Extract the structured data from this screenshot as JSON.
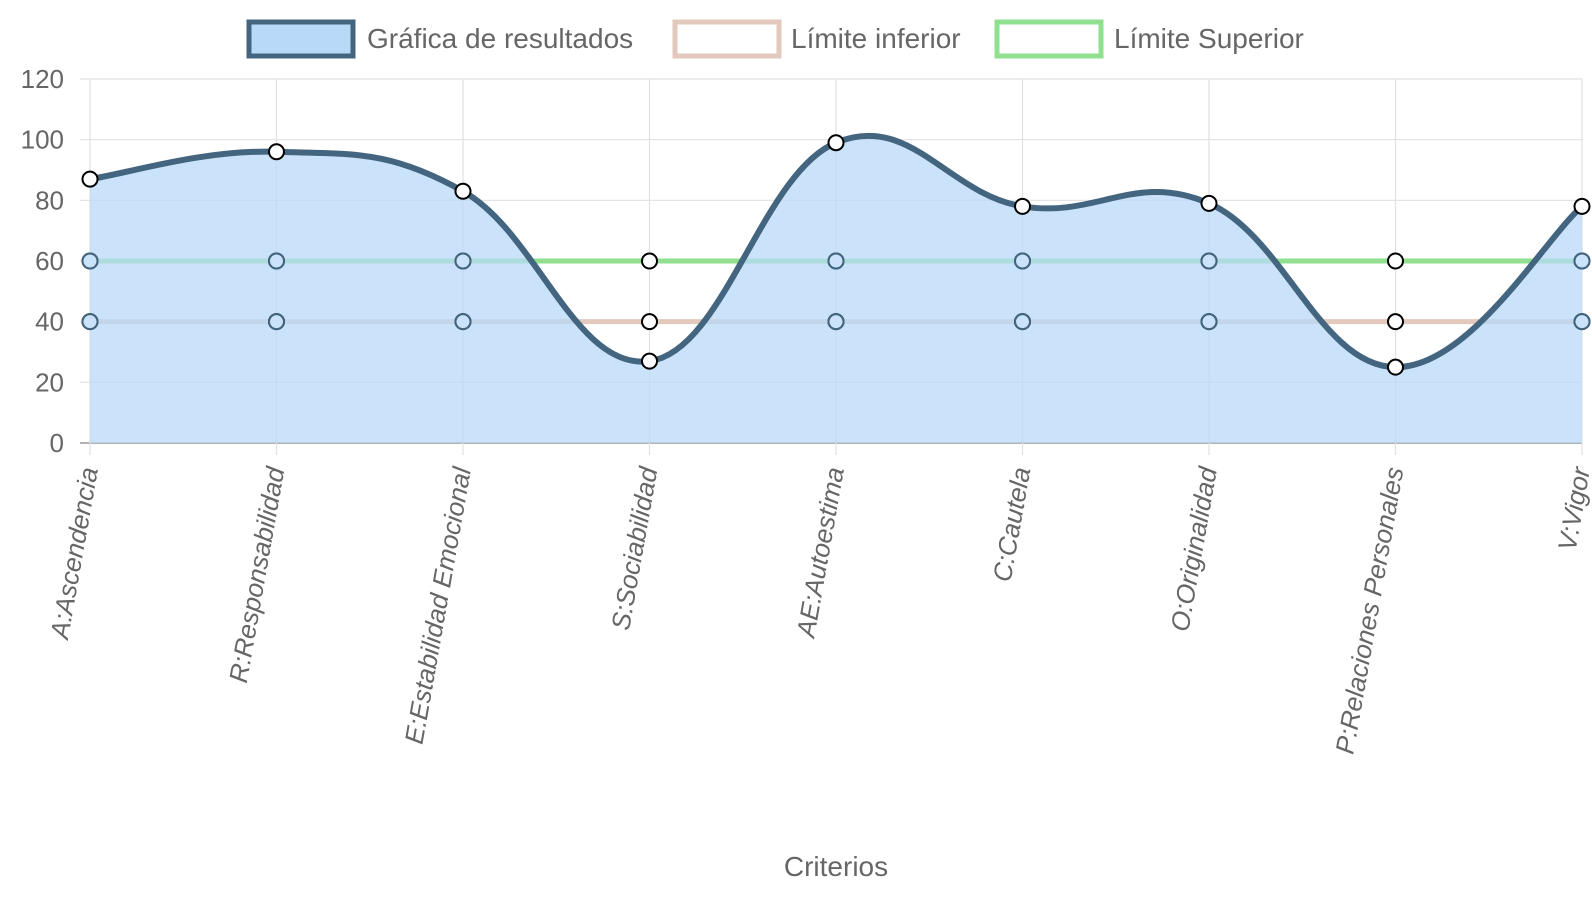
{
  "chart_data": {
    "type": "area",
    "categories": [
      "A:Ascendencia",
      "R:Responsabilidad",
      "E:Estabilidad Emocional",
      "S:Sociabilidad",
      "AE:Autoestima",
      "C:Cautela",
      "O:Originalidad",
      "P:Relaciones Personales",
      "V:Vigor"
    ],
    "series": [
      {
        "name": "Gráfica de resultados",
        "values": [
          87,
          96,
          83,
          27,
          99,
          78,
          79,
          25,
          78
        ],
        "type": "area",
        "smooth": true,
        "line_color": "#44657f",
        "fill_color": "#b8daf8"
      },
      {
        "name": "Límite inferior",
        "values": [
          40,
          40,
          40,
          40,
          40,
          40,
          40,
          40,
          40
        ],
        "type": "line",
        "line_color": "#e2c8bd"
      },
      {
        "name": "Límite Superior",
        "values": [
          60,
          60,
          60,
          60,
          60,
          60,
          60,
          60,
          60
        ],
        "type": "line",
        "line_color": "#90e090"
      }
    ],
    "xlabel": "Criterios",
    "ylabel": "",
    "ylim": [
      0,
      120
    ],
    "yticks": [
      "0",
      "20",
      "40",
      "60",
      "80",
      "100",
      "120"
    ],
    "grid": true,
    "legend_position": "top"
  }
}
